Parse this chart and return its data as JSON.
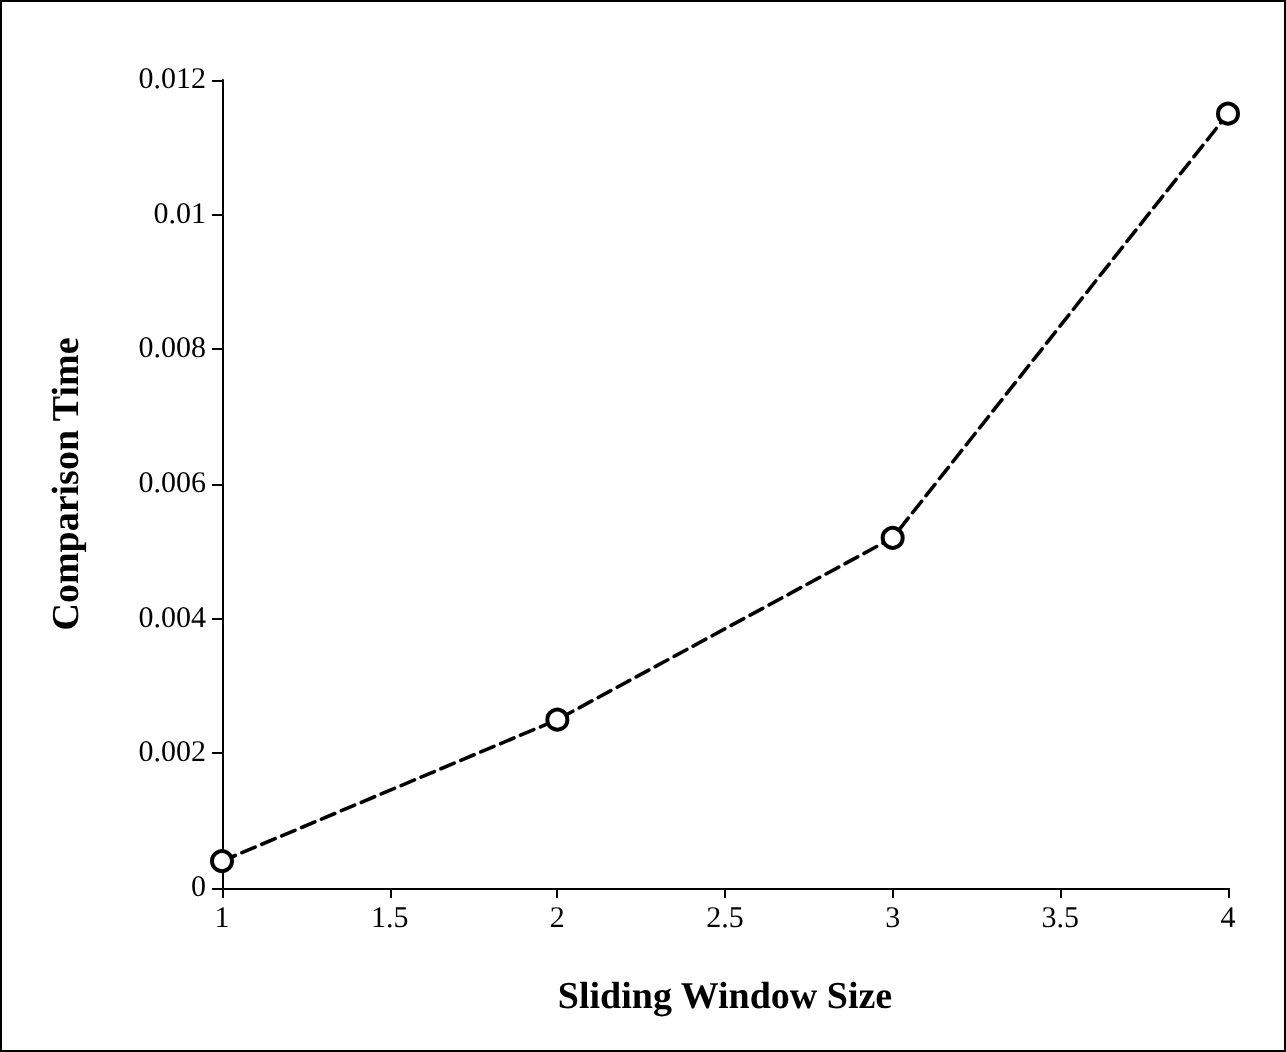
{
  "chart_data": {
    "type": "line",
    "xlabel": "Sliding Window Size",
    "ylabel": "Comparison Time",
    "x": [
      1,
      2,
      3,
      4
    ],
    "series": [
      {
        "color": "#000000",
        "values": [
          0.0004,
          0.0025,
          0.0052,
          0.0115
        ]
      }
    ],
    "xlim": [
      1,
      4
    ],
    "xticks": [
      1,
      1.5,
      2,
      2.5,
      3,
      3.5,
      4
    ],
    "ylim": [
      0,
      0.012
    ],
    "yticks": [
      0,
      0.002,
      0.004,
      0.006,
      0.008,
      0.01,
      0.012
    ],
    "grid": false,
    "marker": "circle",
    "line_style": "dashed"
  }
}
